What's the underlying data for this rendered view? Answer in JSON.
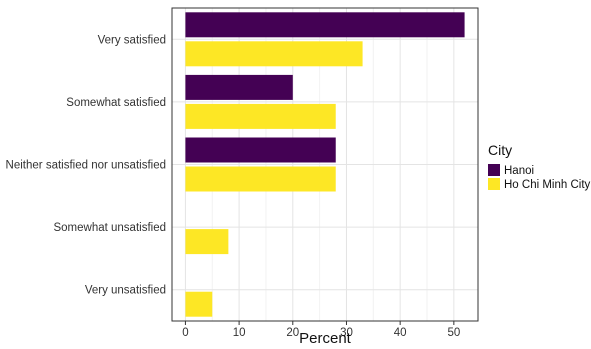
{
  "chart_data": {
    "type": "bar",
    "orientation": "horizontal",
    "categories": [
      "Very satisfied",
      "Somewhat satisfied",
      "Neither satisfied nor unsatisfied",
      "Somewhat unsatisfied",
      "Very unsatisfied"
    ],
    "series": [
      {
        "name": "Hanoi",
        "color": "#440154",
        "values": [
          52,
          20,
          28,
          0,
          0
        ]
      },
      {
        "name": "Ho Chi Minh City",
        "color": "#fde725",
        "values": [
          33,
          28,
          28,
          8,
          5
        ]
      }
    ],
    "xlabel": "Percent",
    "ylabel": "",
    "xlim": [
      -2.5,
      54.5
    ],
    "xticks": [
      0,
      10,
      20,
      30,
      40,
      50
    ],
    "grid": true,
    "legend": {
      "title": "City",
      "position": "right"
    }
  }
}
